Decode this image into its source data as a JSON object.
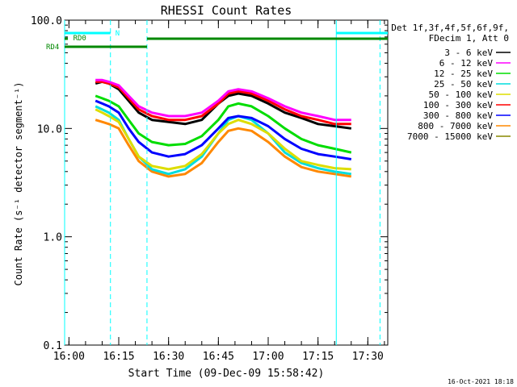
{
  "chart_data": {
    "type": "line",
    "title": "RHESSI Count Rates",
    "xlabel": "Start Time (09-Dec-09 15:58:42)",
    "ylabel": "Count Rate (s⁻¹ detector segment⁻¹)",
    "y_scale": "log",
    "ylim": [
      0.1,
      100.0
    ],
    "xlim": [
      "15:58:42",
      "17:36:00"
    ],
    "x_ticks": [
      "16:00",
      "16:15",
      "16:30",
      "16:45",
      "17:00",
      "17:15",
      "17:30"
    ],
    "y_ticks": [
      "0.1",
      "1.0",
      "10.0",
      "100.0"
    ],
    "grid": false,
    "legend_header": [
      "Det 1f,3f,4f,5f,6f,9f,",
      "FDecim 1, Att 0"
    ],
    "legend_position": "right",
    "x": [
      "16:08",
      "16:10",
      "16:12",
      "16:15",
      "16:18",
      "16:21",
      "16:25",
      "16:30",
      "16:35",
      "16:40",
      "16:45",
      "16:48",
      "16:51",
      "16:55",
      "17:00",
      "17:05",
      "17:10",
      "17:15",
      "17:20",
      "17:25"
    ],
    "series": [
      {
        "name": "3 - 6 keV",
        "color": "#000000",
        "values": [
          26,
          27,
          26,
          23,
          18,
          14,
          12,
          11.5,
          11,
          12,
          17,
          20,
          21,
          20,
          17,
          14,
          12.5,
          11,
          10.5,
          10
        ]
      },
      {
        "name": "6 - 12 keV",
        "color": "#ff00ff",
        "values": [
          28,
          28,
          27,
          25,
          20,
          16,
          14,
          13,
          13,
          14,
          18,
          22,
          23,
          22,
          19,
          16,
          14,
          13,
          12,
          12
        ]
      },
      {
        "name": "12 - 25 keV",
        "color": "#00dd00",
        "values": [
          20,
          19,
          18,
          16,
          12,
          9,
          7.5,
          7,
          7.2,
          8.5,
          12,
          16,
          17,
          16,
          13,
          10,
          8,
          7,
          6.5,
          6
        ]
      },
      {
        "name": "25 - 50 keV",
        "color": "#00dddd",
        "values": [
          16,
          15,
          14,
          12,
          8,
          5.5,
          4.2,
          3.8,
          4.2,
          5.5,
          9,
          12,
          13,
          12,
          9,
          6,
          4.8,
          4.3,
          4,
          3.8
        ]
      },
      {
        "name": "50 - 100 keV",
        "color": "#dddd00",
        "values": [
          15,
          14,
          13,
          11.5,
          8,
          5.5,
          4.5,
          4.2,
          4.5,
          5.8,
          9,
          11,
          12,
          11,
          9,
          6.5,
          5,
          4.6,
          4.3,
          4.2
        ]
      },
      {
        "name": "100 - 300 keV",
        "color": "#ff0000",
        "values": [
          27,
          27,
          26,
          24,
          19,
          15,
          13,
          12,
          12,
          13,
          17,
          21,
          22,
          21,
          18,
          15,
          13,
          12,
          11,
          11
        ]
      },
      {
        "name": "300 - 800 keV",
        "color": "#0000ff",
        "values": [
          18,
          17,
          16,
          14,
          10,
          7.5,
          6,
          5.5,
          5.8,
          7,
          10,
          12.5,
          13,
          12.5,
          10.5,
          8,
          6.5,
          5.8,
          5.5,
          5.2
        ]
      },
      {
        "name": "800 - 7000 keV",
        "color": "#ff8800",
        "values": [
          12,
          11.5,
          11,
          10,
          7,
          5,
          4,
          3.6,
          3.8,
          4.8,
          7.5,
          9.5,
          10,
          9.5,
          7.5,
          5.5,
          4.4,
          4,
          3.8,
          3.6
        ]
      },
      {
        "name": "7000 - 15000 keV",
        "color": "#888800",
        "values": [
          null,
          null,
          null,
          null,
          null,
          null,
          null,
          null,
          null,
          null,
          null,
          null,
          null,
          null,
          null,
          null,
          null,
          null,
          null,
          null
        ]
      }
    ],
    "annotations": {
      "attenuator_flags": [
        {
          "label": "N",
          "color": "#00ffff",
          "start": "15:58:42",
          "end": "16:12:30"
        },
        {
          "label": "",
          "color": "#00ffff",
          "start": "17:20:30",
          "end": "17:36:00"
        }
      ],
      "decimation_flags": [
        {
          "label": "RD0",
          "color": "#008800",
          "start": "15:58:42",
          "end": "15:59:20"
        },
        {
          "label": "",
          "color": "#008800",
          "start": "16:23:30",
          "end": "17:36:00"
        },
        {
          "label": "RD4",
          "color": "#008800",
          "start": "15:58:42",
          "end": "16:23:30"
        }
      ],
      "vertical_lines": [
        {
          "time": "15:58:42",
          "style": "solid",
          "color": "#00ffff"
        },
        {
          "time": "16:12:30",
          "style": "dashed",
          "color": "#00ffff"
        },
        {
          "time": "16:23:30",
          "style": "dashed",
          "color": "#00ffff"
        },
        {
          "time": "17:20:30",
          "style": "solid",
          "color": "#00ffff"
        },
        {
          "time": "17:33:40",
          "style": "dashed",
          "color": "#00ffff"
        }
      ]
    }
  },
  "footer_timestamp": "16-Oct-2021 18:18"
}
